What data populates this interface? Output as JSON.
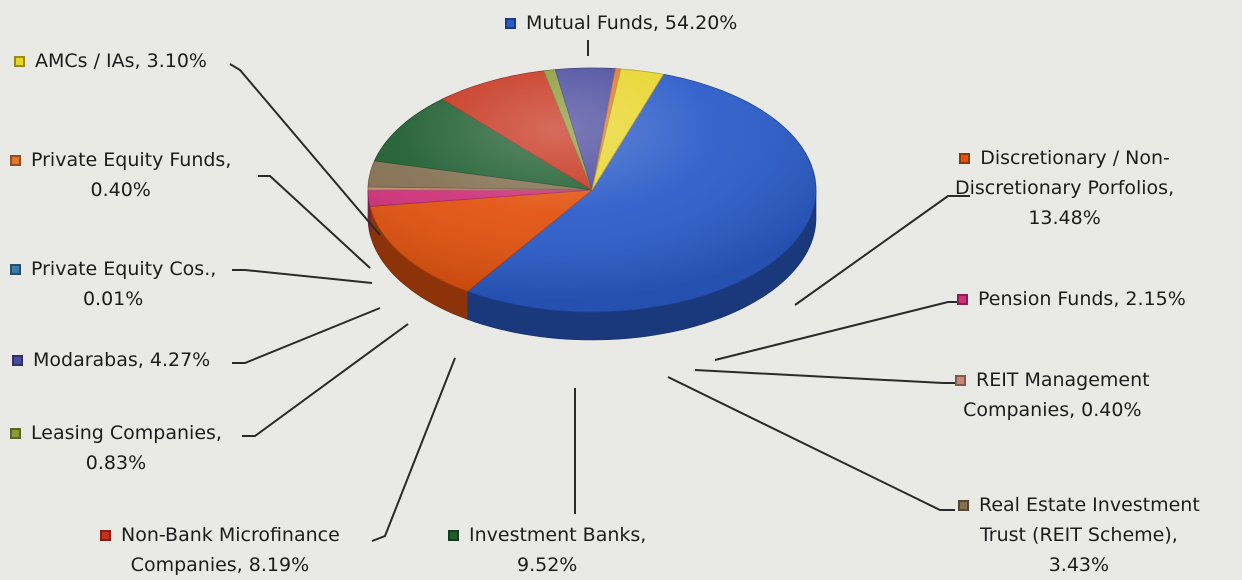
{
  "chart_data": {
    "type": "pie",
    "title": "",
    "slices": [
      {
        "label": "Mutual Funds",
        "value": 54.2,
        "display": "Mutual Funds, 54.20%",
        "color": "#2a5bc8"
      },
      {
        "label": "Discretionary / Non-Discretionary Porfolios",
        "value": 13.48,
        "display": "Discretionary / Non-Discretionary Porfolios, 13.48%",
        "color": "#e2520f"
      },
      {
        "label": "Pension Funds",
        "value": 2.15,
        "display": "Pension Funds, 2.15%",
        "color": "#d0307a"
      },
      {
        "label": "REIT Management Companies",
        "value": 0.4,
        "display": "REIT Management Companies, 0.40%",
        "color": "#c98a74"
      },
      {
        "label": "Real Estate Investment Trust (REIT Scheme)",
        "value": 3.43,
        "display": "Real Estate Investment Trust (REIT Scheme), 3.43%",
        "color": "#857152"
      },
      {
        "label": "Investment Banks",
        "value": 9.52,
        "display": "Investment Banks, 9.52%",
        "color": "#1f5e30"
      },
      {
        "label": "Non-Bank Microfinance Companies",
        "value": 8.19,
        "display": "Non-Bank Microfinance Companies, 8.19%",
        "color": "#c6321c"
      },
      {
        "label": "Leasing Companies",
        "value": 0.83,
        "display": "Leasing Companies, 0.83%",
        "color": "#8a9b3a"
      },
      {
        "label": "Modarabas",
        "value": 4.27,
        "display": "Modarabas, 4.27%",
        "color": "#4a4a9e"
      },
      {
        "label": "Private Equity Cos.",
        "value": 0.01,
        "display": "Private Equity Cos., 0.01%",
        "color": "#3d7aa6"
      },
      {
        "label": "Private Equity Funds",
        "value": 0.4,
        "display": "Private Equity Funds, 0.40%",
        "color": "#e07a2a"
      },
      {
        "label": "AMCs / IAs",
        "value": 3.1,
        "display": "AMCs / IAs, 3.10%",
        "color": "#e8d52a"
      }
    ],
    "legend": "data-labels",
    "style": "3d-pie"
  },
  "labels": {
    "mutual_funds": {
      "lines": [
        "Mutual Funds, 54.20%"
      ]
    },
    "discretionary": {
      "lines": [
        "Discretionary / Non-",
        "Discretionary Porfolios,",
        "13.48%"
      ]
    },
    "pension": {
      "lines": [
        "Pension Funds, 2.15%"
      ]
    },
    "reit_mgmt": {
      "lines": [
        "REIT Management",
        "Companies, 0.40%"
      ]
    },
    "reit_scheme": {
      "lines": [
        "Real Estate Investment",
        "Trust (REIT Scheme),",
        "3.43%"
      ]
    },
    "investment_banks": {
      "lines": [
        "Investment Banks,",
        "9.52%"
      ]
    },
    "microfinance": {
      "lines": [
        "Non-Bank Microfinance",
        "Companies, 8.19%"
      ]
    },
    "leasing": {
      "lines": [
        "Leasing Companies,",
        "0.83%"
      ]
    },
    "modarabas": {
      "lines": [
        "Modarabas, 4.27%"
      ]
    },
    "pe_cos": {
      "lines": [
        "Private Equity Cos.,",
        "0.01%"
      ]
    },
    "pe_funds": {
      "lines": [
        "Private Equity Funds,",
        "0.40%"
      ]
    },
    "amcs": {
      "lines": [
        "AMCs / IAs, 3.10%"
      ]
    }
  }
}
